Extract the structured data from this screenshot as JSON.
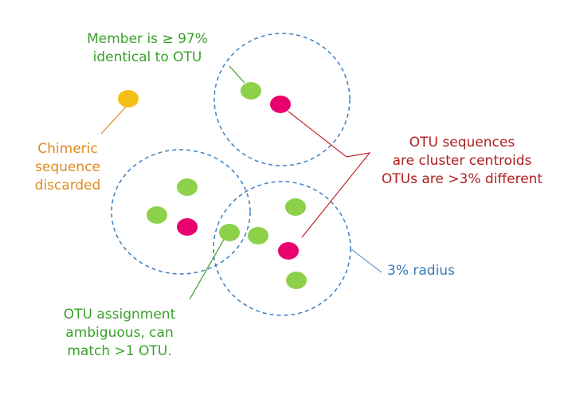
{
  "colors": {
    "member_dot": "#8dd14b",
    "centroid_dot": "#e8006e",
    "chimera_dot": "#f5be16",
    "cluster_outline": "#3d7fc1",
    "label_green": "#3aa12a",
    "label_orange": "#e08a1e",
    "label_red": "#b01f1f",
    "label_blue": "#3a78b5"
  },
  "labels": {
    "member": [
      "Member is ≥ 97%",
      "identical to OTU"
    ],
    "chimeric": [
      "Chimeric",
      "sequence",
      "discarded"
    ],
    "otu_sequences": [
      "OTU sequences",
      "are cluster centroids",
      "OTUs are >3% different"
    ],
    "radius": "3% radius",
    "ambiguous": [
      "OTU assignment",
      "ambiguous, can",
      "match >1 OTU."
    ]
  }
}
